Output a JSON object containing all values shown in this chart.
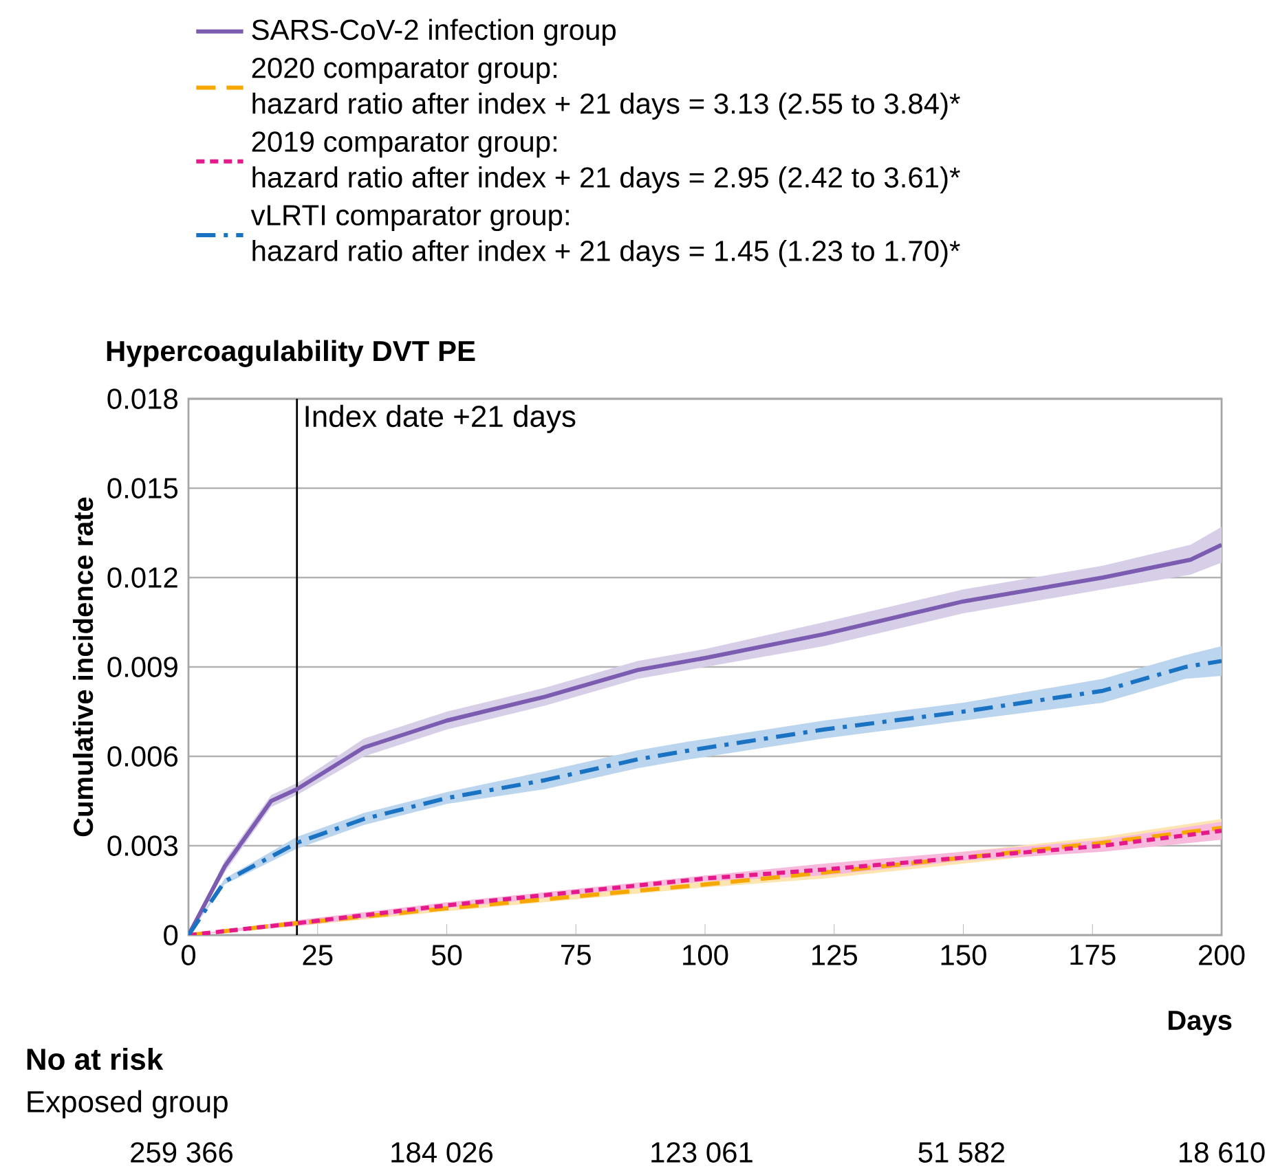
{
  "chart_data": {
    "type": "line",
    "title": "Hypercoagulability DVT PE",
    "xlabel": "Days",
    "ylabel": "Cumulative incidence rate",
    "xlim": [
      0,
      200
    ],
    "xticks": [
      0,
      25,
      50,
      75,
      100,
      125,
      150,
      175,
      200
    ],
    "ylim": [
      0,
      0.018
    ],
    "yticks": [
      0,
      0.003,
      0.006,
      0.009,
      0.012,
      0.015,
      0.018
    ],
    "grid": "y",
    "legend": "top",
    "marker": "none",
    "ref_lines": [
      {
        "axis": "x",
        "value": 21,
        "label": "Index date +21 days",
        "color": "#000000"
      }
    ],
    "series": [
      {
        "name": "SARS-CoV-2 infection group",
        "color": "#7b5cb0",
        "line_style": "solid",
        "x": [
          0,
          7,
          16,
          21,
          34,
          50,
          69,
          87,
          100,
          123,
          150,
          177,
          194,
          200
        ],
        "values": [
          0,
          0.0023,
          0.0045,
          0.0049,
          0.0063,
          0.0072,
          0.008,
          0.0089,
          0.0093,
          0.0101,
          0.0112,
          0.012,
          0.0126,
          0.0131
        ],
        "lower": [
          0,
          0.0021,
          0.0043,
          0.0047,
          0.006,
          0.0069,
          0.0077,
          0.0086,
          0.009,
          0.0097,
          0.0108,
          0.0116,
          0.0121,
          0.0125
        ],
        "upper": [
          0,
          0.0025,
          0.0047,
          0.0051,
          0.0066,
          0.0075,
          0.0083,
          0.0092,
          0.0096,
          0.0105,
          0.0116,
          0.0124,
          0.0131,
          0.0137
        ]
      },
      {
        "name": "2020 comparator group:",
        "color": "#f7a800",
        "line_style": "dashed",
        "x": [
          0,
          21,
          50,
          100,
          123,
          150,
          177,
          200
        ],
        "values": [
          0,
          0.0004,
          0.0009,
          0.0017,
          0.0021,
          0.0026,
          0.0031,
          0.0036
        ],
        "lower": [
          0,
          0.0003,
          0.0008,
          0.0016,
          0.0019,
          0.0024,
          0.0029,
          0.0033
        ],
        "upper": [
          0,
          0.0005,
          0.001,
          0.0018,
          0.0023,
          0.0028,
          0.0033,
          0.0039
        ]
      },
      {
        "name": "2019 comparator group:",
        "color": "#e5198a",
        "line_style": "dotted",
        "x": [
          0,
          21,
          50,
          100,
          123,
          150,
          177,
          200
        ],
        "values": [
          0,
          0.0004,
          0.001,
          0.0019,
          0.0022,
          0.0026,
          0.003,
          0.0035
        ],
        "lower": [
          0,
          0.0003,
          0.0009,
          0.0018,
          0.002,
          0.0025,
          0.0028,
          0.0032
        ],
        "upper": [
          0,
          0.0005,
          0.0011,
          0.002,
          0.0024,
          0.0028,
          0.0032,
          0.0038
        ]
      },
      {
        "name": "vLRTI comparator group:",
        "color": "#1a72c2",
        "line_style": "dashdot",
        "x": [
          0,
          7,
          21,
          34,
          50,
          69,
          87,
          97,
          123,
          150,
          177,
          193,
          200
        ],
        "values": [
          0,
          0.0018,
          0.0031,
          0.0039,
          0.0046,
          0.0052,
          0.0059,
          0.0062,
          0.0069,
          0.0075,
          0.0082,
          0.009,
          0.0092
        ],
        "lower": [
          0,
          0.0017,
          0.0029,
          0.0037,
          0.0044,
          0.0049,
          0.0056,
          0.0059,
          0.0066,
          0.0072,
          0.0078,
          0.0086,
          0.0087
        ],
        "upper": [
          0,
          0.0019,
          0.0033,
          0.0041,
          0.0048,
          0.0055,
          0.0062,
          0.0065,
          0.0072,
          0.0078,
          0.0086,
          0.0094,
          0.0097
        ]
      }
    ],
    "annotations": [
      "hazard ratio after index + 21 days = 3.13 (2.55 to 3.84)*",
      "hazard ratio after index + 21 days = 2.95 (2.42 to 3.61)*",
      "hazard ratio after index + 21 days = 1.45 (1.23 to 1.70)*",
      "No at risk",
      "Exposed group",
      "259 366",
      "184 026",
      "123 061",
      "51 582",
      "18 610"
    ]
  }
}
